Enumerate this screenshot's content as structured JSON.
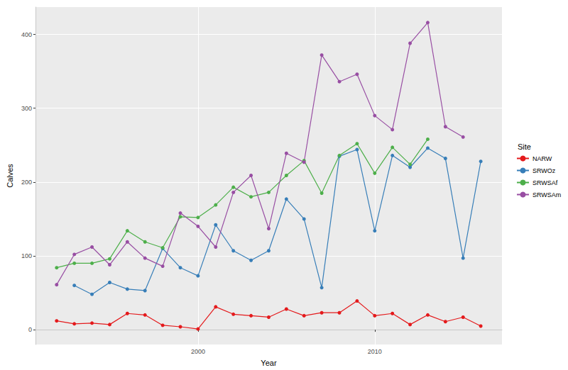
{
  "chart_data": {
    "type": "line",
    "x_label": "Year",
    "y_label": "Calves",
    "legend_title": "Site",
    "legend": "right",
    "grid": true,
    "marker": "circle",
    "line_style": "solid",
    "x": [
      1992,
      1993,
      1994,
      1995,
      1996,
      1997,
      1998,
      1999,
      2000,
      2001,
      2002,
      2003,
      2004,
      2005,
      2006,
      2007,
      2008,
      2009,
      2010,
      2011,
      2012,
      2013,
      2014,
      2015,
      2016
    ],
    "xlim": [
      1990.8,
      2017.2
    ],
    "xticks": [
      2000,
      2010
    ],
    "ylim": [
      -20,
      437
    ],
    "yticks": [
      0,
      100,
      200,
      300,
      400
    ],
    "series": [
      {
        "name": "NARW",
        "color": "#E41A1C",
        "values": [
          12,
          8,
          9,
          7,
          22,
          20,
          6,
          4,
          1,
          31,
          21,
          19,
          17,
          28,
          19,
          23,
          23,
          39,
          19,
          22,
          7,
          20,
          11,
          17,
          5
        ]
      },
      {
        "name": "SRWOz",
        "color": "#377EB8",
        "values": [
          null,
          60,
          48,
          64,
          55,
          53,
          110,
          84,
          73,
          142,
          107,
          94,
          107,
          177,
          150,
          57,
          235,
          244,
          134,
          236,
          220,
          246,
          232,
          97,
          228
        ]
      },
      {
        "name": "SRWSAf",
        "color": "#4DAF4A",
        "values": [
          84,
          90,
          90,
          96,
          134,
          119,
          111,
          153,
          152,
          169,
          193,
          180,
          186,
          209,
          229,
          185,
          236,
          252,
          212,
          247,
          224,
          258,
          null,
          null,
          null
        ]
      },
      {
        "name": "SRWSAm",
        "color": "#984EA3",
        "values": [
          61,
          102,
          112,
          88,
          119,
          97,
          86,
          158,
          140,
          112,
          186,
          209,
          137,
          239,
          227,
          372,
          336,
          346,
          290,
          271,
          388,
          416,
          275,
          261,
          null
        ]
      }
    ]
  }
}
